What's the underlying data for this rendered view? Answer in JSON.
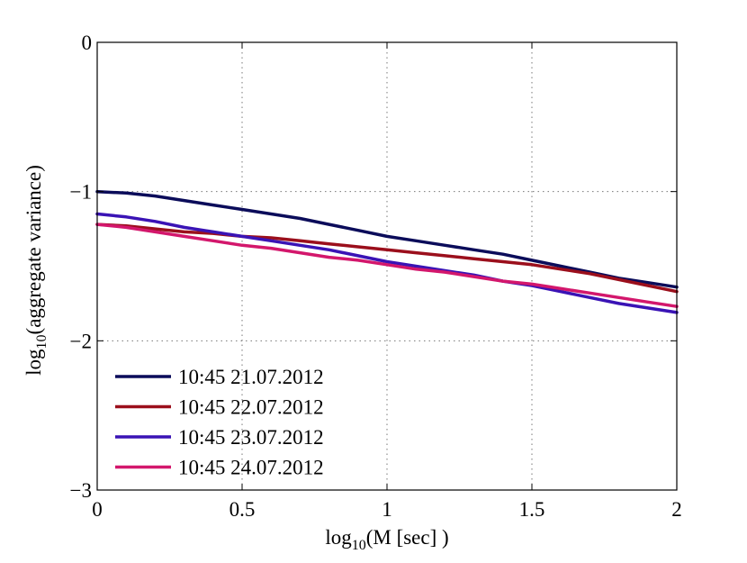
{
  "chart_data": {
    "type": "line",
    "xlabel": "log",
    "xlabel_sub": "10",
    "xlabel_rest": "(M [sec] )",
    "ylabel": "log",
    "ylabel_sub": "10",
    "ylabel_rest": "(aggregate variance)",
    "xlim": [
      0,
      2
    ],
    "ylim": [
      -3,
      0
    ],
    "x_ticks": [
      0,
      0.5,
      1,
      1.5,
      2
    ],
    "x_tick_labels": [
      "0",
      "0.5",
      "1",
      "1.5",
      "2"
    ],
    "y_ticks": [
      0,
      -1,
      -2,
      -3
    ],
    "y_tick_labels": [
      "0",
      "−1",
      "−2",
      "−3"
    ],
    "grid": true,
    "legend_position": "bottom-left",
    "series": [
      {
        "name": "10:45 21.07.2012",
        "color": "#0b0c5a",
        "x": [
          0,
          0.1,
          0.2,
          0.3,
          0.4,
          0.5,
          0.6,
          0.7,
          0.8,
          0.9,
          1.0,
          1.1,
          1.2,
          1.3,
          1.4,
          1.5,
          1.6,
          1.7,
          1.8,
          1.9,
          2.0
        ],
        "y": [
          -1.0,
          -1.01,
          -1.03,
          -1.06,
          -1.09,
          -1.12,
          -1.15,
          -1.18,
          -1.22,
          -1.26,
          -1.3,
          -1.33,
          -1.36,
          -1.39,
          -1.42,
          -1.46,
          -1.5,
          -1.54,
          -1.58,
          -1.61,
          -1.64
        ]
      },
      {
        "name": "10:45 22.07.2012",
        "color": "#9b0f1c",
        "x": [
          0,
          0.1,
          0.2,
          0.3,
          0.4,
          0.5,
          0.6,
          0.7,
          0.8,
          0.9,
          1.0,
          1.1,
          1.2,
          1.3,
          1.4,
          1.5,
          1.6,
          1.7,
          1.8,
          1.9,
          2.0
        ],
        "y": [
          -1.22,
          -1.23,
          -1.25,
          -1.27,
          -1.28,
          -1.3,
          -1.31,
          -1.33,
          -1.35,
          -1.37,
          -1.39,
          -1.41,
          -1.43,
          -1.45,
          -1.47,
          -1.49,
          -1.52,
          -1.55,
          -1.59,
          -1.63,
          -1.67
        ]
      },
      {
        "name": "10:45 23.07.2012",
        "color": "#3a13b5",
        "x": [
          0,
          0.1,
          0.2,
          0.3,
          0.4,
          0.5,
          0.6,
          0.7,
          0.8,
          0.9,
          1.0,
          1.1,
          1.2,
          1.3,
          1.4,
          1.5,
          1.6,
          1.7,
          1.8,
          1.9,
          2.0
        ],
        "y": [
          -1.15,
          -1.17,
          -1.2,
          -1.24,
          -1.27,
          -1.3,
          -1.33,
          -1.36,
          -1.39,
          -1.43,
          -1.47,
          -1.5,
          -1.53,
          -1.56,
          -1.6,
          -1.63,
          -1.67,
          -1.71,
          -1.75,
          -1.78,
          -1.81
        ]
      },
      {
        "name": "10:45 24.07.2012",
        "color": "#d3176c",
        "x": [
          0,
          0.1,
          0.2,
          0.3,
          0.4,
          0.5,
          0.6,
          0.7,
          0.8,
          0.9,
          1.0,
          1.1,
          1.2,
          1.3,
          1.4,
          1.5,
          1.6,
          1.7,
          1.8,
          1.9,
          2.0
        ],
        "y": [
          -1.22,
          -1.24,
          -1.27,
          -1.3,
          -1.33,
          -1.36,
          -1.38,
          -1.41,
          -1.44,
          -1.46,
          -1.49,
          -1.52,
          -1.54,
          -1.57,
          -1.6,
          -1.62,
          -1.65,
          -1.68,
          -1.71,
          -1.74,
          -1.77
        ]
      }
    ]
  }
}
